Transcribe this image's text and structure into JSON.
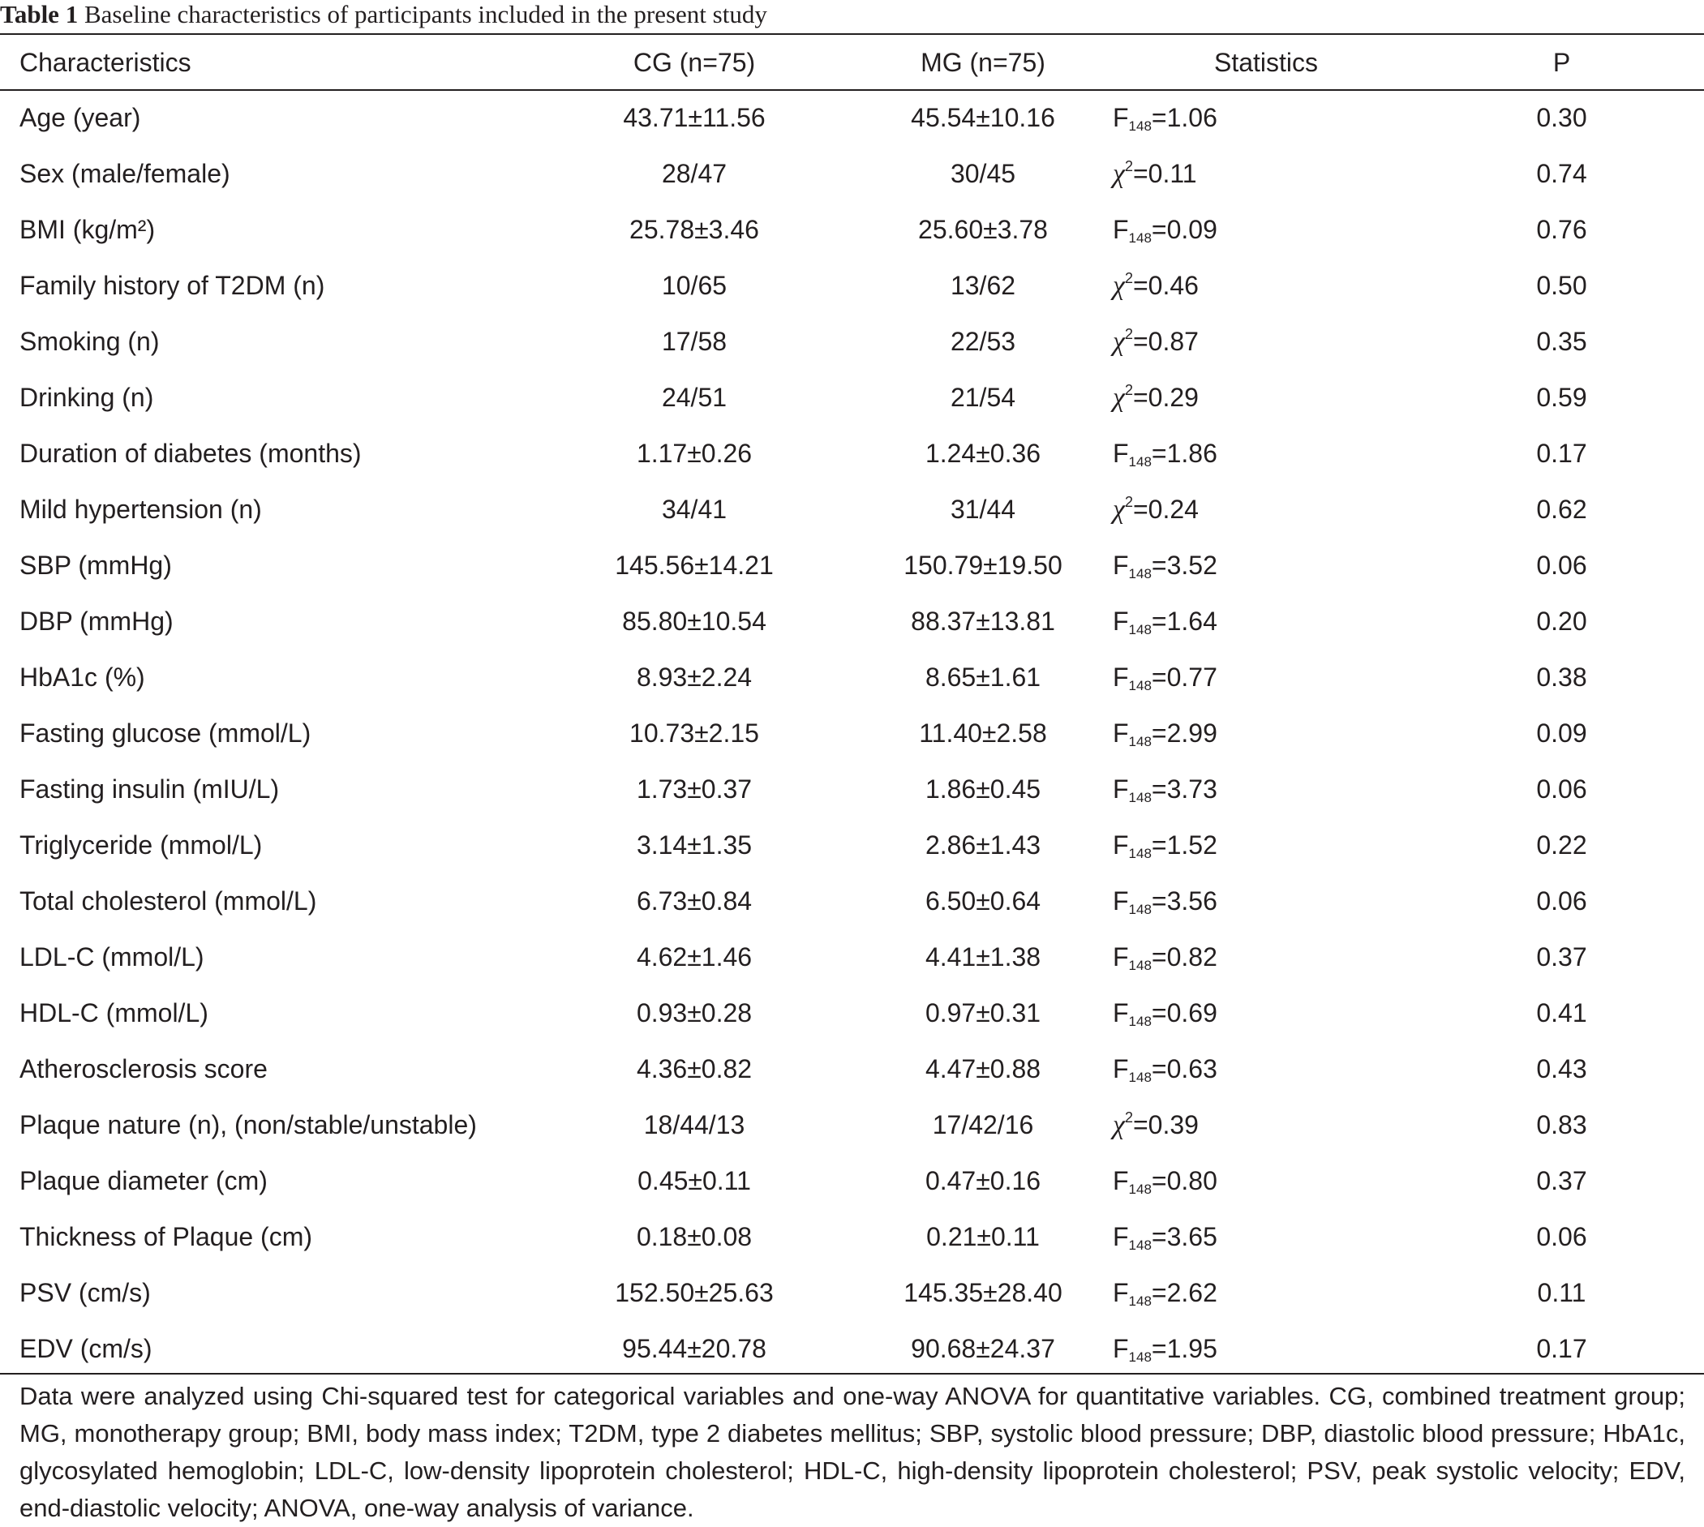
{
  "caption": {
    "label": "Table 1",
    "text": "Baseline characteristics of participants included in the present study"
  },
  "headers": [
    "Characteristics",
    "CG (n=75)",
    "MG (n=75)",
    "Statistics",
    "P"
  ],
  "rows": [
    {
      "characteristic": "Age (year)",
      "cg": "43.71±11.56",
      "mg": "45.54±10.16",
      "stat_type": "F",
      "stat_sub": "148",
      "stat_value": "=1.06",
      "p": "0.30"
    },
    {
      "characteristic": "Sex (male/female)",
      "cg": "28/47",
      "mg": "30/45",
      "stat_type": "chi2",
      "stat_sub": "",
      "stat_value": "=0.11",
      "p": "0.74"
    },
    {
      "characteristic": "BMI (kg/m²)",
      "cg": "25.78±3.46",
      "mg": "25.60±3.78",
      "stat_type": "F",
      "stat_sub": "148",
      "stat_value": "=0.09",
      "p": "0.76"
    },
    {
      "characteristic": "Family history of T2DM (n)",
      "cg": "10/65",
      "mg": "13/62",
      "stat_type": "chi2",
      "stat_sub": "",
      "stat_value": "=0.46",
      "p": "0.50"
    },
    {
      "characteristic": "Smoking (n)",
      "cg": "17/58",
      "mg": "22/53",
      "stat_type": "chi2",
      "stat_sub": "",
      "stat_value": "=0.87",
      "p": "0.35"
    },
    {
      "characteristic": "Drinking (n)",
      "cg": "24/51",
      "mg": "21/54",
      "stat_type": "chi2",
      "stat_sub": "",
      "stat_value": "=0.29",
      "p": "0.59"
    },
    {
      "characteristic": "Duration of diabetes (months)",
      "cg": "1.17±0.26",
      "mg": "1.24±0.36",
      "stat_type": "F",
      "stat_sub": "148",
      "stat_value": "=1.86",
      "p": "0.17"
    },
    {
      "characteristic": "Mild hypertension (n)",
      "cg": "34/41",
      "mg": "31/44",
      "stat_type": "chi2",
      "stat_sub": "",
      "stat_value": "=0.24",
      "p": "0.62"
    },
    {
      "characteristic": "SBP (mmHg)",
      "cg": "145.56±14.21",
      "mg": "150.79±19.50",
      "stat_type": "F",
      "stat_sub": "148",
      "stat_value": "=3.52",
      "p": "0.06"
    },
    {
      "characteristic": "DBP (mmHg)",
      "cg": "85.80±10.54",
      "mg": "88.37±13.81",
      "stat_type": "F",
      "stat_sub": "148",
      "stat_value": "=1.64",
      "p": "0.20"
    },
    {
      "characteristic": "HbA1c (%)",
      "cg": "8.93±2.24",
      "mg": "8.65±1.61",
      "stat_type": "F",
      "stat_sub": "148",
      "stat_value": "=0.77",
      "p": "0.38"
    },
    {
      "characteristic": "Fasting glucose (mmol/L)",
      "cg": "10.73±2.15",
      "mg": "11.40±2.58",
      "stat_type": "F",
      "stat_sub": "148",
      "stat_value": "=2.99",
      "p": "0.09"
    },
    {
      "characteristic": "Fasting insulin (mIU/L)",
      "cg": "1.73±0.37",
      "mg": "1.86±0.45",
      "stat_type": "F",
      "stat_sub": "148",
      "stat_value": "=3.73",
      "p": "0.06"
    },
    {
      "characteristic": "Triglyceride (mmol/L)",
      "cg": "3.14±1.35",
      "mg": "2.86±1.43",
      "stat_type": "F",
      "stat_sub": "148",
      "stat_value": "=1.52",
      "p": "0.22"
    },
    {
      "characteristic": "Total cholesterol (mmol/L)",
      "cg": "6.73±0.84",
      "mg": "6.50±0.64",
      "stat_type": "F",
      "stat_sub": "148",
      "stat_value": "=3.56",
      "p": "0.06"
    },
    {
      "characteristic": "LDL-C (mmol/L)",
      "cg": "4.62±1.46",
      "mg": "4.41±1.38",
      "stat_type": "F",
      "stat_sub": "148",
      "stat_value": "=0.82",
      "p": "0.37"
    },
    {
      "characteristic": "HDL-C (mmol/L)",
      "cg": "0.93±0.28",
      "mg": "0.97±0.31",
      "stat_type": "F",
      "stat_sub": "148",
      "stat_value": "=0.69",
      "p": "0.41"
    },
    {
      "characteristic": "Atherosclerosis score",
      "cg": "4.36±0.82",
      "mg": "4.47±0.88",
      "stat_type": "F",
      "stat_sub": "148",
      "stat_value": "=0.63",
      "p": "0.43"
    },
    {
      "characteristic": "Plaque nature (n), (non/stable/unstable)",
      "cg": "18/44/13",
      "mg": "17/42/16",
      "stat_type": "chi2",
      "stat_sub": "",
      "stat_value": "=0.39",
      "p": "0.83"
    },
    {
      "characteristic": "Plaque diameter (cm)",
      "cg": "0.45±0.11",
      "mg": "0.47±0.16",
      "stat_type": "F",
      "stat_sub": "148",
      "stat_value": "=0.80",
      "p": "0.37"
    },
    {
      "characteristic": "Thickness of Plaque (cm)",
      "cg": "0.18±0.08",
      "mg": "0.21±0.11",
      "stat_type": "F",
      "stat_sub": "148",
      "stat_value": "=3.65",
      "p": "0.06"
    },
    {
      "characteristic": "PSV (cm/s)",
      "cg": "152.50±25.63",
      "mg": "145.35±28.40",
      "stat_type": "F",
      "stat_sub": "148",
      "stat_value": "=2.62",
      "p": "0.11"
    },
    {
      "characteristic": "EDV (cm/s)",
      "cg": "95.44±20.78",
      "mg": "90.68±24.37",
      "stat_type": "F",
      "stat_sub": "148",
      "stat_value": "=1.95",
      "p": "0.17"
    }
  ],
  "footnote": "Data were analyzed using Chi-squared test for categorical variables and one-way ANOVA for quantitative variables. CG, combined treatment group; MG, monotherapy group; BMI, body mass index; T2DM, type 2 diabetes mellitus; SBP, systolic blood pressure; DBP, diastolic blood pressure; HbA1c, glycosylated hemoglobin; LDL-C, low-density lipoprotein cholesterol; HDL-C, high-density lipoprotein cholesterol; PSV, peak systolic velocity; EDV, end-diastolic velocity; ANOVA, one-way analysis of variance."
}
